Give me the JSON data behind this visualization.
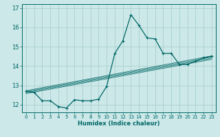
{
  "xlabel": "Humidex (Indice chaleur)",
  "ylabel": "",
  "bg_color": "#cce8e8",
  "grid_color": "#aacfcf",
  "line_color": "#006666",
  "xlim": [
    -0.5,
    23.5
  ],
  "ylim": [
    11.6,
    17.2
  ],
  "yticks": [
    12,
    13,
    14,
    15,
    16,
    17
  ],
  "xticks": [
    0,
    1,
    2,
    3,
    4,
    5,
    6,
    7,
    8,
    9,
    10,
    11,
    12,
    13,
    14,
    15,
    16,
    17,
    18,
    19,
    20,
    21,
    22,
    23
  ],
  "data_x": [
    0,
    1,
    2,
    3,
    4,
    5,
    6,
    7,
    8,
    9,
    10,
    11,
    12,
    13,
    14,
    15,
    16,
    17,
    18,
    19,
    20,
    21,
    22,
    23
  ],
  "data_y": [
    12.7,
    12.63,
    12.2,
    12.2,
    11.9,
    11.82,
    12.25,
    12.2,
    12.2,
    12.28,
    12.95,
    14.65,
    15.3,
    16.65,
    16.1,
    15.45,
    15.4,
    14.65,
    14.65,
    14.08,
    14.08,
    14.25,
    14.42,
    14.5
  ],
  "reg_lines": [
    {
      "x": [
        0,
        23
      ],
      "y": [
        12.72,
        14.52
      ]
    },
    {
      "x": [
        0,
        23
      ],
      "y": [
        12.67,
        14.46
      ]
    },
    {
      "x": [
        0,
        23
      ],
      "y": [
        12.62,
        14.4
      ]
    },
    {
      "x": [
        0,
        23
      ],
      "y": [
        12.57,
        14.34
      ]
    }
  ]
}
